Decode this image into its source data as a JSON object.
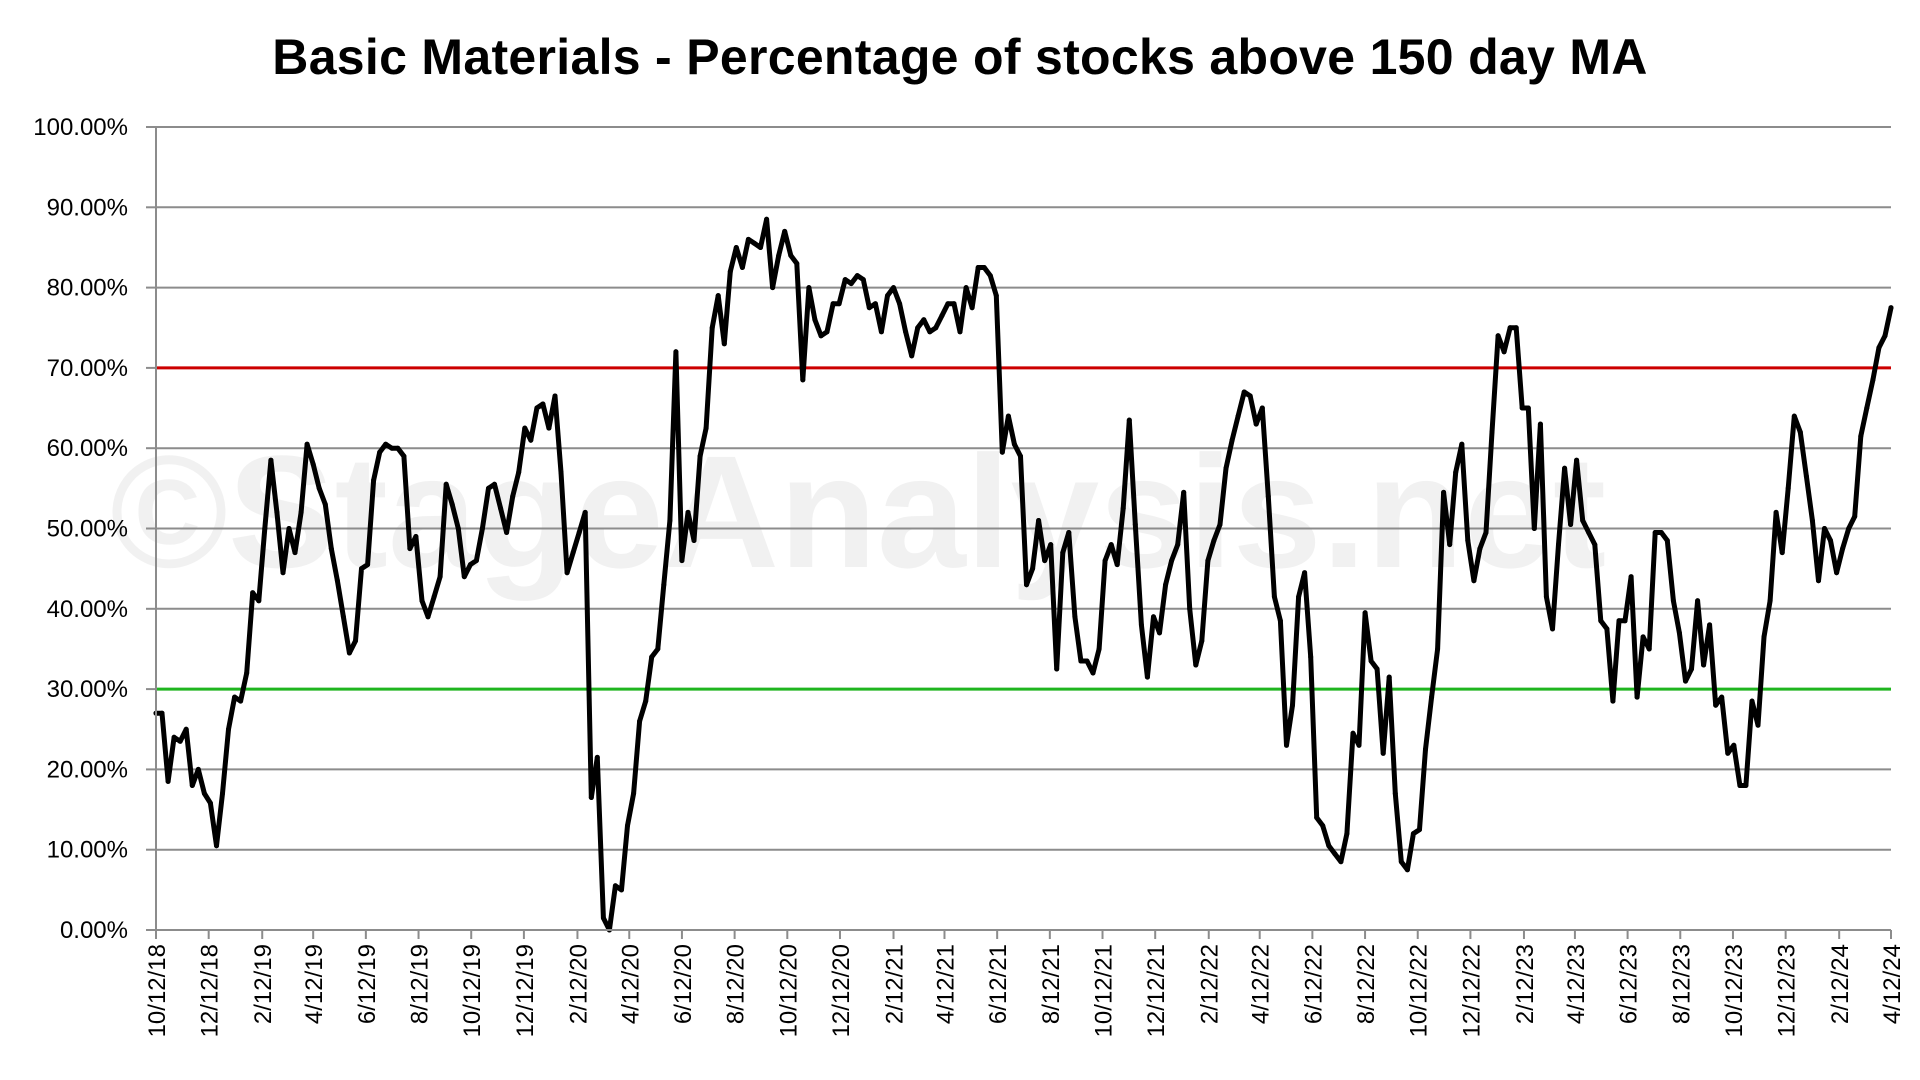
{
  "watermark": "©StageAnalysis.net",
  "chart_data": {
    "type": "line",
    "title": "Basic Materials - Percentage of stocks above 150 day MA",
    "xlabel": "",
    "ylabel": "",
    "ylim": [
      0,
      100
    ],
    "y_ticks": [
      "0.00%",
      "10.00%",
      "20.00%",
      "30.00%",
      "40.00%",
      "50.00%",
      "60.00%",
      "70.00%",
      "80.00%",
      "90.00%",
      "100.00%"
    ],
    "x_ticks": [
      "10/12/18",
      "12/12/18",
      "2/12/19",
      "4/12/19",
      "6/12/19",
      "8/12/19",
      "10/12/19",
      "12/12/19",
      "2/12/20",
      "4/12/20",
      "6/12/20",
      "8/12/20",
      "10/12/20",
      "12/12/20",
      "2/12/21",
      "4/12/21",
      "6/12/21",
      "8/12/21",
      "10/12/21",
      "12/12/21",
      "2/12/22",
      "4/12/22",
      "6/12/22",
      "8/12/22",
      "10/12/22",
      "12/12/22",
      "2/12/23",
      "4/12/23",
      "6/12/23",
      "8/12/23",
      "10/12/23",
      "12/12/23",
      "2/12/24",
      "4/12/24"
    ],
    "x_range": [
      "10/12/18",
      "4/12/24"
    ],
    "grid": true,
    "legend": "none",
    "reference_lines": [
      {
        "value": 70,
        "color": "#cc0000"
      },
      {
        "value": 30,
        "color": "#1fb51f"
      }
    ],
    "series": [
      {
        "color": "#000000",
        "points": [
          [
            "10/12/18",
            27
          ],
          [
            "10/19/18",
            27
          ],
          [
            "10/26/18",
            18.5
          ],
          [
            "11/2/18",
            24
          ],
          [
            "11/9/18",
            23.5
          ],
          [
            "11/16/18",
            25
          ],
          [
            "11/23/18",
            18
          ],
          [
            "11/30/18",
            20
          ],
          [
            "12/7/18",
            17
          ],
          [
            "12/14/18",
            15.8
          ],
          [
            "12/21/18",
            10.5
          ],
          [
            "12/28/18",
            17
          ],
          [
            "1/4/19",
            25
          ],
          [
            "1/11/19",
            29
          ],
          [
            "1/18/19",
            28.5
          ],
          [
            "1/25/19",
            32
          ],
          [
            "2/1/19",
            42
          ],
          [
            "2/8/19",
            41
          ],
          [
            "2/15/19",
            50
          ],
          [
            "2/22/19",
            58.5
          ],
          [
            "3/1/19",
            52
          ],
          [
            "3/8/19",
            44.5
          ],
          [
            "3/15/19",
            50
          ],
          [
            "3/22/19",
            47
          ],
          [
            "3/29/19",
            52
          ],
          [
            "4/5/19",
            60.5
          ],
          [
            "4/12/19",
            58
          ],
          [
            "4/19/19",
            55
          ],
          [
            "4/26/19",
            53
          ],
          [
            "5/3/19",
            47.5
          ],
          [
            "5/10/19",
            43.5
          ],
          [
            "5/17/19",
            39
          ],
          [
            "5/24/19",
            34.5
          ],
          [
            "5/31/19",
            36
          ],
          [
            "6/7/19",
            45
          ],
          [
            "6/14/19",
            45.5
          ],
          [
            "6/21/19",
            56
          ],
          [
            "6/28/19",
            59.5
          ],
          [
            "7/5/19",
            60.5
          ],
          [
            "7/12/19",
            60
          ],
          [
            "7/19/19",
            60
          ],
          [
            "7/26/19",
            59
          ],
          [
            "8/2/19",
            47.5
          ],
          [
            "8/9/19",
            49
          ],
          [
            "8/16/19",
            41
          ],
          [
            "8/23/19",
            39
          ],
          [
            "8/30/19",
            41.5
          ],
          [
            "9/6/19",
            44
          ],
          [
            "9/13/19",
            55.5
          ],
          [
            "9/20/19",
            53
          ],
          [
            "9/27/19",
            50
          ],
          [
            "10/4/19",
            44
          ],
          [
            "10/11/19",
            45.5
          ],
          [
            "10/18/19",
            46
          ],
          [
            "10/25/19",
            50
          ],
          [
            "11/1/19",
            55
          ],
          [
            "11/8/19",
            55.5
          ],
          [
            "11/15/19",
            52.5
          ],
          [
            "11/22/19",
            49.5
          ],
          [
            "11/29/19",
            54
          ],
          [
            "12/6/19",
            57
          ],
          [
            "12/13/19",
            62.5
          ],
          [
            "12/20/19",
            61
          ],
          [
            "12/27/19",
            65
          ],
          [
            "1/3/20",
            65.5
          ],
          [
            "1/10/20",
            62.5
          ],
          [
            "1/17/20",
            66.5
          ],
          [
            "1/24/20",
            57
          ],
          [
            "1/31/20",
            44.5
          ],
          [
            "2/7/20",
            47
          ],
          [
            "2/14/20",
            49.5
          ],
          [
            "2/21/20",
            52
          ],
          [
            "2/28/20",
            16.5
          ],
          [
            "3/6/20",
            21.5
          ],
          [
            "3/13/20",
            1.5
          ],
          [
            "3/20/20",
            0
          ],
          [
            "3/27/20",
            5.5
          ],
          [
            "4/3/20",
            5
          ],
          [
            "4/10/20",
            13
          ],
          [
            "4/17/20",
            17
          ],
          [
            "4/24/20",
            26
          ],
          [
            "5/1/20",
            28.5
          ],
          [
            "5/8/20",
            34
          ],
          [
            "5/15/20",
            35
          ],
          [
            "5/22/20",
            43
          ],
          [
            "5/29/20",
            51
          ],
          [
            "6/5/20",
            72
          ],
          [
            "6/12/20",
            46
          ],
          [
            "6/19/20",
            52
          ],
          [
            "6/26/20",
            48.5
          ],
          [
            "7/3/20",
            59
          ],
          [
            "7/10/20",
            62.5
          ],
          [
            "7/17/20",
            75
          ],
          [
            "7/24/20",
            79
          ],
          [
            "7/31/20",
            73
          ],
          [
            "8/7/20",
            82
          ],
          [
            "8/14/20",
            85
          ],
          [
            "8/21/20",
            82.5
          ],
          [
            "8/28/20",
            86
          ],
          [
            "9/4/20",
            85.5
          ],
          [
            "9/11/20",
            85
          ],
          [
            "9/18/20",
            88.5
          ],
          [
            "9/25/20",
            80
          ],
          [
            "10/2/20",
            84
          ],
          [
            "10/9/20",
            87
          ],
          [
            "10/16/20",
            84
          ],
          [
            "10/23/20",
            83
          ],
          [
            "10/30/20",
            68.5
          ],
          [
            "11/6/20",
            80
          ],
          [
            "11/13/20",
            76
          ],
          [
            "11/20/20",
            74
          ],
          [
            "11/27/20",
            74.5
          ],
          [
            "12/4/20",
            78
          ],
          [
            "12/11/20",
            78
          ],
          [
            "12/18/20",
            81
          ],
          [
            "12/25/20",
            80.5
          ],
          [
            "1/1/21",
            81.5
          ],
          [
            "1/8/21",
            81
          ],
          [
            "1/15/21",
            77.5
          ],
          [
            "1/22/21",
            78
          ],
          [
            "1/29/21",
            74.5
          ],
          [
            "2/5/21",
            79
          ],
          [
            "2/12/21",
            80
          ],
          [
            "2/19/21",
            78
          ],
          [
            "2/26/21",
            74.5
          ],
          [
            "3/5/21",
            71.5
          ],
          [
            "3/12/21",
            75
          ],
          [
            "3/19/21",
            76
          ],
          [
            "3/26/21",
            74.5
          ],
          [
            "4/2/21",
            75
          ],
          [
            "4/9/21",
            76.5
          ],
          [
            "4/16/21",
            78
          ],
          [
            "4/23/21",
            78
          ],
          [
            "4/30/21",
            74.5
          ],
          [
            "5/7/21",
            80
          ],
          [
            "5/14/21",
            77.5
          ],
          [
            "5/21/21",
            82.5
          ],
          [
            "5/28/21",
            82.5
          ],
          [
            "6/4/21",
            81.5
          ],
          [
            "6/11/21",
            79
          ],
          [
            "6/18/21",
            59.5
          ],
          [
            "6/25/21",
            64
          ],
          [
            "7/2/21",
            60.5
          ],
          [
            "7/9/21",
            59
          ],
          [
            "7/16/21",
            43
          ],
          [
            "7/23/21",
            45
          ],
          [
            "7/30/21",
            51
          ],
          [
            "8/6/21",
            46
          ],
          [
            "8/13/21",
            48
          ],
          [
            "8/20/21",
            32.5
          ],
          [
            "8/27/21",
            47
          ],
          [
            "9/3/21",
            49.5
          ],
          [
            "9/10/21",
            39
          ],
          [
            "9/17/21",
            33.5
          ],
          [
            "9/24/21",
            33.5
          ],
          [
            "10/1/21",
            32
          ],
          [
            "10/8/21",
            35
          ],
          [
            "10/15/21",
            46
          ],
          [
            "10/22/21",
            48
          ],
          [
            "10/29/21",
            45.5
          ],
          [
            "11/5/21",
            52.5
          ],
          [
            "11/12/21",
            63.5
          ],
          [
            "11/19/21",
            50.5
          ],
          [
            "11/26/21",
            38
          ],
          [
            "12/3/21",
            31.5
          ],
          [
            "12/10/21",
            39
          ],
          [
            "12/17/21",
            37
          ],
          [
            "12/24/21",
            43
          ],
          [
            "12/31/21",
            46
          ],
          [
            "1/7/22",
            48
          ],
          [
            "1/14/22",
            54.5
          ],
          [
            "1/21/22",
            40
          ],
          [
            "1/28/22",
            33
          ],
          [
            "2/4/22",
            36
          ],
          [
            "2/11/22",
            46
          ],
          [
            "2/18/22",
            48.5
          ],
          [
            "2/25/22",
            50.5
          ],
          [
            "3/4/22",
            57.5
          ],
          [
            "3/11/22",
            61
          ],
          [
            "3/18/22",
            64
          ],
          [
            "3/25/22",
            67
          ],
          [
            "4/1/22",
            66.5
          ],
          [
            "4/8/22",
            63
          ],
          [
            "4/15/22",
            65
          ],
          [
            "4/22/22",
            54
          ],
          [
            "4/29/22",
            41.5
          ],
          [
            "5/6/22",
            38.5
          ],
          [
            "5/13/22",
            23
          ],
          [
            "5/20/22",
            28
          ],
          [
            "5/27/22",
            41.5
          ],
          [
            "6/3/22",
            44.5
          ],
          [
            "6/10/22",
            34
          ],
          [
            "6/17/22",
            14
          ],
          [
            "6/24/22",
            13
          ],
          [
            "7/1/22",
            10.5
          ],
          [
            "7/8/22",
            9.5
          ],
          [
            "7/15/22",
            8.5
          ],
          [
            "7/22/22",
            12
          ],
          [
            "7/29/22",
            24.5
          ],
          [
            "8/5/22",
            23
          ],
          [
            "8/12/22",
            39.5
          ],
          [
            "8/19/22",
            33.5
          ],
          [
            "8/26/22",
            32.5
          ],
          [
            "9/2/22",
            22
          ],
          [
            "9/9/22",
            31.5
          ],
          [
            "9/16/22",
            17
          ],
          [
            "9/23/22",
            8.5
          ],
          [
            "9/30/22",
            7.5
          ],
          [
            "10/7/22",
            12
          ],
          [
            "10/14/22",
            12.5
          ],
          [
            "10/21/22",
            22.5
          ],
          [
            "10/28/22",
            29
          ],
          [
            "11/4/22",
            35
          ],
          [
            "11/11/22",
            54.5
          ],
          [
            "11/18/22",
            48
          ],
          [
            "11/25/22",
            57
          ],
          [
            "12/2/22",
            60.5
          ],
          [
            "12/9/22",
            48.5
          ],
          [
            "12/16/22",
            43.5
          ],
          [
            "12/23/22",
            47.5
          ],
          [
            "12/30/22",
            49.5
          ],
          [
            "1/6/23",
            62
          ],
          [
            "1/13/23",
            74
          ],
          [
            "1/20/23",
            72
          ],
          [
            "1/27/23",
            75
          ],
          [
            "2/3/23",
            75
          ],
          [
            "2/10/23",
            65
          ],
          [
            "2/17/23",
            65
          ],
          [
            "2/24/23",
            50
          ],
          [
            "3/3/23",
            63
          ],
          [
            "3/10/23",
            41.5
          ],
          [
            "3/17/23",
            37.5
          ],
          [
            "3/24/23",
            48
          ],
          [
            "3/31/23",
            57.5
          ],
          [
            "4/7/23",
            50.5
          ],
          [
            "4/14/23",
            58.5
          ],
          [
            "4/21/23",
            51
          ],
          [
            "4/28/23",
            49.5
          ],
          [
            "5/5/23",
            48
          ],
          [
            "5/12/23",
            38.5
          ],
          [
            "5/19/23",
            37.5
          ],
          [
            "5/26/23",
            28.5
          ],
          [
            "6/2/23",
            38.5
          ],
          [
            "6/9/23",
            38.5
          ],
          [
            "6/16/23",
            44
          ],
          [
            "6/23/23",
            29
          ],
          [
            "6/30/23",
            36.5
          ],
          [
            "7/7/23",
            35
          ],
          [
            "7/14/23",
            49.5
          ],
          [
            "7/21/23",
            49.5
          ],
          [
            "7/28/23",
            48.5
          ],
          [
            "8/4/23",
            41
          ],
          [
            "8/11/23",
            37
          ],
          [
            "8/18/23",
            31
          ],
          [
            "8/25/23",
            32.5
          ],
          [
            "9/1/23",
            41
          ],
          [
            "9/8/23",
            33
          ],
          [
            "9/15/23",
            38
          ],
          [
            "9/22/23",
            28
          ],
          [
            "9/29/23",
            29
          ],
          [
            "10/6/23",
            22
          ],
          [
            "10/13/23",
            23
          ],
          [
            "10/20/23",
            18
          ],
          [
            "10/27/23",
            18
          ],
          [
            "11/3/23",
            28.5
          ],
          [
            "11/10/23",
            25.5
          ],
          [
            "11/17/23",
            36.5
          ],
          [
            "11/24/23",
            41
          ],
          [
            "12/1/23",
            52
          ],
          [
            "12/8/23",
            47
          ],
          [
            "12/15/23",
            55
          ],
          [
            "12/22/23",
            64
          ],
          [
            "12/29/23",
            62
          ],
          [
            "1/5/24",
            56.5
          ],
          [
            "1/12/24",
            51
          ],
          [
            "1/19/24",
            43.5
          ],
          [
            "1/26/24",
            50
          ],
          [
            "2/2/24",
            48.5
          ],
          [
            "2/9/24",
            44.5
          ],
          [
            "2/16/24",
            47.5
          ],
          [
            "2/23/24",
            50
          ],
          [
            "3/1/24",
            51.5
          ],
          [
            "3/8/24",
            61.5
          ],
          [
            "3/15/24",
            65
          ],
          [
            "3/22/24",
            68.5
          ],
          [
            "3/29/24",
            72.5
          ],
          [
            "4/5/24",
            74
          ],
          [
            "4/12/24",
            77.5
          ]
        ]
      }
    ]
  }
}
